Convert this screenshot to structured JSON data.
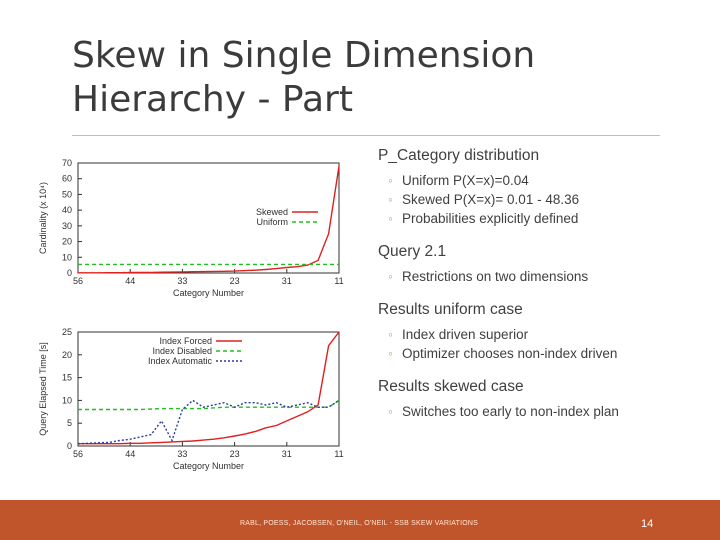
{
  "slide": {
    "title_line1": "Skew in Single Dimension",
    "title_line2": "Hierarchy - Part",
    "footer": "RABL, POESS, JACOBSEN, O'NEIL, O'NEIL - SSB SKEW VARIATIONS",
    "page_number": "14"
  },
  "sections": [
    {
      "heading": "P_Category distribution",
      "items": [
        "Uniform P(X=x)=0.04",
        "Skewed P(X=x)= 0.01 - 48.36",
        "Probabilities explicitly defined"
      ]
    },
    {
      "heading": "Query 2.1",
      "items": [
        "Restrictions on two dimensions"
      ]
    },
    {
      "heading": "Results uniform case",
      "items": [
        "Index driven superior",
        "Optimizer chooses non-index driven"
      ]
    },
    {
      "heading": "Results skewed case",
      "items": [
        "Switches too early to non-index plan"
      ]
    }
  ],
  "chart_data": [
    {
      "type": "line",
      "ylabel": "Cardinality (x 10⁴)",
      "xlabel": "Category Number",
      "ylim": [
        0,
        70
      ],
      "yticks": [
        0,
        10,
        20,
        30,
        40,
        50,
        60,
        70
      ],
      "xtick_labels": [
        "56",
        "44",
        "33",
        "23",
        "31",
        "11"
      ],
      "xtick_positions": [
        0,
        5,
        10,
        15,
        20,
        25
      ],
      "xlim": [
        0,
        25
      ],
      "legend_position": "right",
      "series": [
        {
          "name": "Skewed",
          "color": "#e02020",
          "dash": "solid",
          "x": [
            0,
            1,
            2,
            3,
            4,
            5,
            6,
            7,
            8,
            9,
            10,
            11,
            12,
            13,
            14,
            15,
            16,
            17,
            18,
            19,
            20,
            21,
            22,
            23,
            24,
            25
          ],
          "y": [
            0.1,
            0.1,
            0.15,
            0.2,
            0.2,
            0.3,
            0.3,
            0.4,
            0.5,
            0.6,
            0.7,
            0.8,
            0.9,
            1,
            1.1,
            1.2,
            1.5,
            1.8,
            2.2,
            2.8,
            3.5,
            4,
            5,
            8,
            25,
            68
          ]
        },
        {
          "name": "Uniform",
          "color": "#20c020",
          "dash": "dashed",
          "x": [
            0,
            25
          ],
          "y": [
            5.5,
            5.5
          ]
        }
      ]
    },
    {
      "type": "line",
      "ylabel": "Query Elapsed Time [s]",
      "xlabel": "Category Number",
      "ylim": [
        0,
        25
      ],
      "yticks": [
        0,
        5,
        10,
        15,
        20,
        25
      ],
      "xtick_labels": [
        "56",
        "44",
        "33",
        "23",
        "31",
        "11"
      ],
      "xtick_positions": [
        0,
        5,
        10,
        15,
        20,
        25
      ],
      "xlim": [
        0,
        25
      ],
      "legend_position": "top-center",
      "series": [
        {
          "name": "Index Forced",
          "color": "#e02020",
          "dash": "solid",
          "x": [
            0,
            1,
            2,
            3,
            4,
            5,
            6,
            7,
            8,
            9,
            10,
            11,
            12,
            13,
            14,
            15,
            16,
            17,
            18,
            19,
            20,
            21,
            22,
            23,
            24,
            25
          ],
          "y": [
            0.5,
            0.5,
            0.5,
            0.5,
            0.5,
            0.6,
            0.6,
            0.7,
            0.8,
            0.9,
            1,
            1.1,
            1.3,
            1.5,
            1.8,
            2.2,
            2.6,
            3.2,
            4,
            4.5,
            5.5,
            6.5,
            7.5,
            9,
            22,
            25
          ]
        },
        {
          "name": "Index Disabled",
          "color": "#20c020",
          "dash": "dashed",
          "x": [
            0,
            4,
            6,
            8,
            10,
            12,
            14,
            16,
            18,
            20,
            22,
            24,
            25
          ],
          "y": [
            8,
            8,
            8,
            8.2,
            8.2,
            8.2,
            8.5,
            8.5,
            8.5,
            8.5,
            8.5,
            8.5,
            10
          ]
        },
        {
          "name": "Index Automatic",
          "color": "#2a3aa0",
          "dash": "dotted",
          "x": [
            0,
            1,
            2,
            3,
            4,
            5,
            6,
            7,
            8,
            9,
            10,
            11,
            12,
            13,
            14,
            15,
            16,
            17,
            18,
            19,
            20,
            21,
            22,
            23,
            24,
            25
          ],
          "y": [
            0.5,
            0.6,
            0.7,
            0.8,
            1.2,
            1.5,
            2,
            2.5,
            5.5,
            1.2,
            8,
            10,
            8.5,
            9,
            9.5,
            8.5,
            9.5,
            9.5,
            9,
            9.5,
            8.5,
            9,
            9.5,
            8.5,
            8.5,
            10
          ]
        }
      ]
    }
  ]
}
